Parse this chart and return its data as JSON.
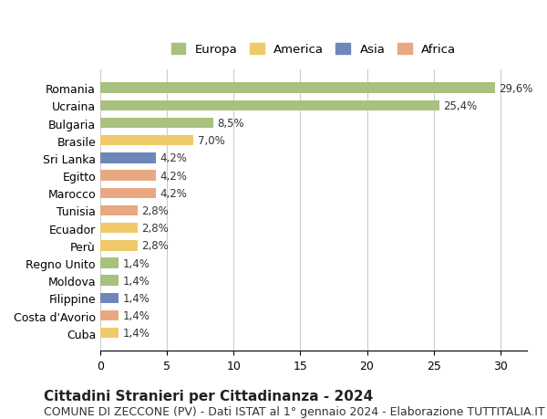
{
  "categories": [
    "Romania",
    "Ucraina",
    "Bulgaria",
    "Brasile",
    "Sri Lanka",
    "Egitto",
    "Marocco",
    "Tunisia",
    "Ecuador",
    "Perù",
    "Regno Unito",
    "Moldova",
    "Filippine",
    "Costa d'Avorio",
    "Cuba"
  ],
  "values": [
    29.6,
    25.4,
    8.5,
    7.0,
    4.2,
    4.2,
    4.2,
    2.8,
    2.8,
    2.8,
    1.4,
    1.4,
    1.4,
    1.4,
    1.4
  ],
  "labels": [
    "29,6%",
    "25,4%",
    "8,5%",
    "7,0%",
    "4,2%",
    "4,2%",
    "4,2%",
    "2,8%",
    "2,8%",
    "2,8%",
    "1,4%",
    "1,4%",
    "1,4%",
    "1,4%",
    "1,4%"
  ],
  "colors": [
    "#a8c17e",
    "#a8c17e",
    "#a8c17e",
    "#f0c96a",
    "#6e87b8",
    "#e8a882",
    "#e8a882",
    "#e8a882",
    "#f0c96a",
    "#f0c96a",
    "#a8c17e",
    "#a8c17e",
    "#6e87b8",
    "#e8a882",
    "#f0c96a"
  ],
  "legend_labels": [
    "Europa",
    "America",
    "Asia",
    "Africa"
  ],
  "legend_colors": [
    "#a8c17e",
    "#f0c96a",
    "#6e87b8",
    "#e8a882"
  ],
  "title": "Cittadini Stranieri per Cittadinanza - 2024",
  "subtitle": "COMUNE DI ZECCONE (PV) - Dati ISTAT al 1° gennaio 2024 - Elaborazione TUTTITALIA.IT",
  "xlim": [
    0,
    32
  ],
  "xticks": [
    0,
    5,
    10,
    15,
    20,
    25,
    30
  ],
  "background_color": "#ffffff",
  "grid_color": "#cccccc",
  "bar_height": 0.6,
  "title_fontsize": 11,
  "subtitle_fontsize": 9,
  "label_fontsize": 8.5,
  "tick_fontsize": 9
}
